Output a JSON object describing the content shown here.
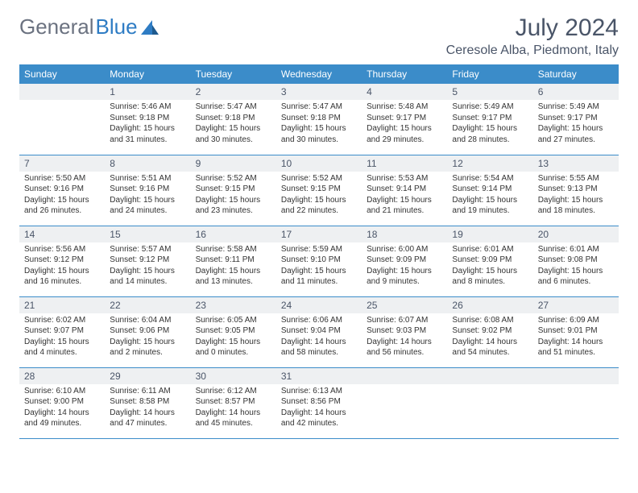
{
  "logo": {
    "part1": "General",
    "part2": "Blue"
  },
  "title": "July 2024",
  "location": "Ceresole Alba, Piedmont, Italy",
  "colors": {
    "header_bg": "#3b8cc9",
    "header_text": "#ffffff",
    "daynum_bg": "#eef0f2",
    "text": "#4a5568",
    "accent": "#2e7cc4"
  },
  "weekdays": [
    "Sunday",
    "Monday",
    "Tuesday",
    "Wednesday",
    "Thursday",
    "Friday",
    "Saturday"
  ],
  "start_offset": 1,
  "days": [
    {
      "n": 1,
      "sr": "5:46 AM",
      "ss": "9:18 PM",
      "dl": "15 hours and 31 minutes."
    },
    {
      "n": 2,
      "sr": "5:47 AM",
      "ss": "9:18 PM",
      "dl": "15 hours and 30 minutes."
    },
    {
      "n": 3,
      "sr": "5:47 AM",
      "ss": "9:18 PM",
      "dl": "15 hours and 30 minutes."
    },
    {
      "n": 4,
      "sr": "5:48 AM",
      "ss": "9:17 PM",
      "dl": "15 hours and 29 minutes."
    },
    {
      "n": 5,
      "sr": "5:49 AM",
      "ss": "9:17 PM",
      "dl": "15 hours and 28 minutes."
    },
    {
      "n": 6,
      "sr": "5:49 AM",
      "ss": "9:17 PM",
      "dl": "15 hours and 27 minutes."
    },
    {
      "n": 7,
      "sr": "5:50 AM",
      "ss": "9:16 PM",
      "dl": "15 hours and 26 minutes."
    },
    {
      "n": 8,
      "sr": "5:51 AM",
      "ss": "9:16 PM",
      "dl": "15 hours and 24 minutes."
    },
    {
      "n": 9,
      "sr": "5:52 AM",
      "ss": "9:15 PM",
      "dl": "15 hours and 23 minutes."
    },
    {
      "n": 10,
      "sr": "5:52 AM",
      "ss": "9:15 PM",
      "dl": "15 hours and 22 minutes."
    },
    {
      "n": 11,
      "sr": "5:53 AM",
      "ss": "9:14 PM",
      "dl": "15 hours and 21 minutes."
    },
    {
      "n": 12,
      "sr": "5:54 AM",
      "ss": "9:14 PM",
      "dl": "15 hours and 19 minutes."
    },
    {
      "n": 13,
      "sr": "5:55 AM",
      "ss": "9:13 PM",
      "dl": "15 hours and 18 minutes."
    },
    {
      "n": 14,
      "sr": "5:56 AM",
      "ss": "9:12 PM",
      "dl": "15 hours and 16 minutes."
    },
    {
      "n": 15,
      "sr": "5:57 AM",
      "ss": "9:12 PM",
      "dl": "15 hours and 14 minutes."
    },
    {
      "n": 16,
      "sr": "5:58 AM",
      "ss": "9:11 PM",
      "dl": "15 hours and 13 minutes."
    },
    {
      "n": 17,
      "sr": "5:59 AM",
      "ss": "9:10 PM",
      "dl": "15 hours and 11 minutes."
    },
    {
      "n": 18,
      "sr": "6:00 AM",
      "ss": "9:09 PM",
      "dl": "15 hours and 9 minutes."
    },
    {
      "n": 19,
      "sr": "6:01 AM",
      "ss": "9:09 PM",
      "dl": "15 hours and 8 minutes."
    },
    {
      "n": 20,
      "sr": "6:01 AM",
      "ss": "9:08 PM",
      "dl": "15 hours and 6 minutes."
    },
    {
      "n": 21,
      "sr": "6:02 AM",
      "ss": "9:07 PM",
      "dl": "15 hours and 4 minutes."
    },
    {
      "n": 22,
      "sr": "6:04 AM",
      "ss": "9:06 PM",
      "dl": "15 hours and 2 minutes."
    },
    {
      "n": 23,
      "sr": "6:05 AM",
      "ss": "9:05 PM",
      "dl": "15 hours and 0 minutes."
    },
    {
      "n": 24,
      "sr": "6:06 AM",
      "ss": "9:04 PM",
      "dl": "14 hours and 58 minutes."
    },
    {
      "n": 25,
      "sr": "6:07 AM",
      "ss": "9:03 PM",
      "dl": "14 hours and 56 minutes."
    },
    {
      "n": 26,
      "sr": "6:08 AM",
      "ss": "9:02 PM",
      "dl": "14 hours and 54 minutes."
    },
    {
      "n": 27,
      "sr": "6:09 AM",
      "ss": "9:01 PM",
      "dl": "14 hours and 51 minutes."
    },
    {
      "n": 28,
      "sr": "6:10 AM",
      "ss": "9:00 PM",
      "dl": "14 hours and 49 minutes."
    },
    {
      "n": 29,
      "sr": "6:11 AM",
      "ss": "8:58 PM",
      "dl": "14 hours and 47 minutes."
    },
    {
      "n": 30,
      "sr": "6:12 AM",
      "ss": "8:57 PM",
      "dl": "14 hours and 45 minutes."
    },
    {
      "n": 31,
      "sr": "6:13 AM",
      "ss": "8:56 PM",
      "dl": "14 hours and 42 minutes."
    }
  ],
  "labels": {
    "sunrise": "Sunrise:",
    "sunset": "Sunset:",
    "daylight": "Daylight:"
  }
}
